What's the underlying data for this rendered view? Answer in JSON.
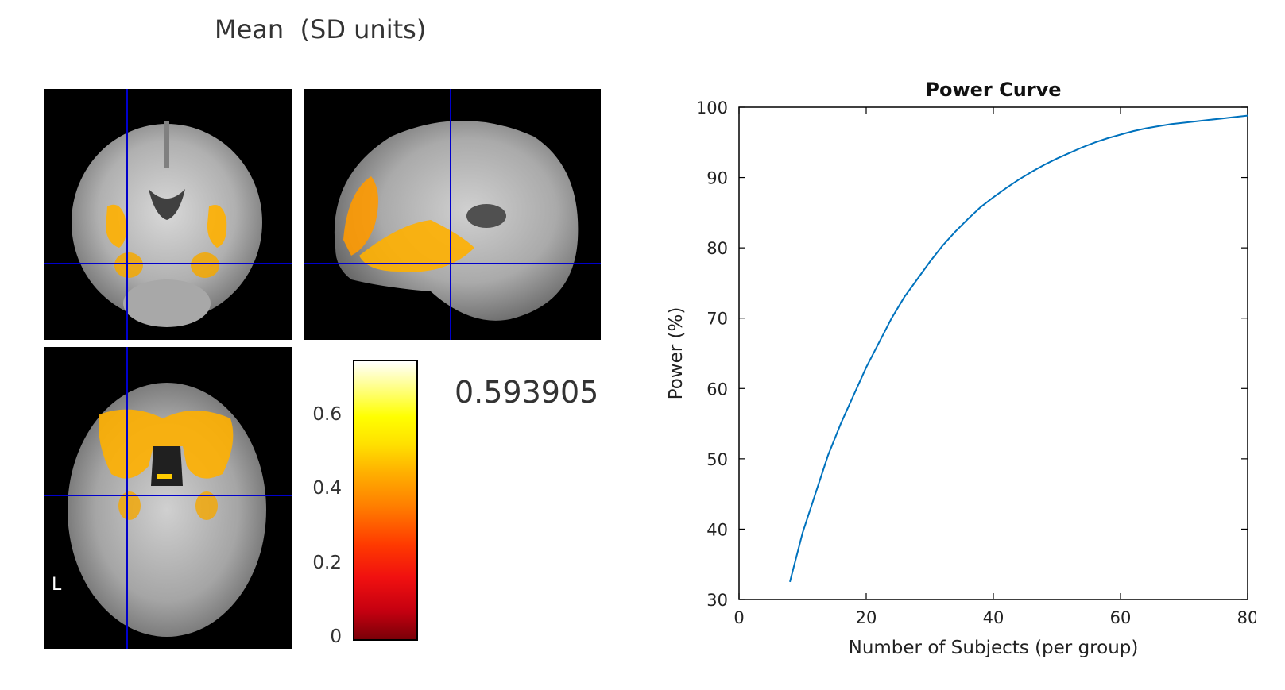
{
  "left_figure": {
    "title": "Mean  (SD units)",
    "orientation_label": "L",
    "colorbar": {
      "ticks": [
        "0",
        "0.2",
        "0.4",
        "0.6"
      ],
      "max": 0.75
    },
    "current_value": "0.593905",
    "crosshair_color": "#0000cc",
    "overlay_color": "#ffb000"
  },
  "chart_data": {
    "type": "line",
    "title": "Power Curve",
    "xlabel": "Number of Subjects (per group)",
    "ylabel": "Power (%)",
    "xlim": [
      0,
      80
    ],
    "ylim": [
      30,
      100
    ],
    "xticks": [
      0,
      20,
      40,
      60,
      80
    ],
    "yticks": [
      30,
      40,
      50,
      60,
      70,
      80,
      90,
      100
    ],
    "grid": false,
    "line_color": "#0072bd",
    "series": [
      {
        "name": "Power",
        "x": [
          8,
          10,
          12,
          14,
          16,
          18,
          20,
          22,
          24,
          26,
          28,
          30,
          32,
          34,
          36,
          38,
          40,
          42,
          44,
          46,
          48,
          50,
          52,
          54,
          56,
          58,
          60,
          62,
          64,
          66,
          68,
          70,
          72,
          74,
          76,
          78,
          80
        ],
        "values": [
          32.5,
          39.5,
          45,
          50.5,
          55,
          59,
          63,
          66.5,
          70,
          73,
          75.5,
          78,
          80.3,
          82.3,
          84.1,
          85.8,
          87.2,
          88.5,
          89.7,
          90.8,
          91.8,
          92.7,
          93.5,
          94.3,
          95,
          95.6,
          96.1,
          96.6,
          97,
          97.3,
          97.6,
          97.8,
          98,
          98.2,
          98.4,
          98.6,
          98.8
        ]
      }
    ]
  }
}
